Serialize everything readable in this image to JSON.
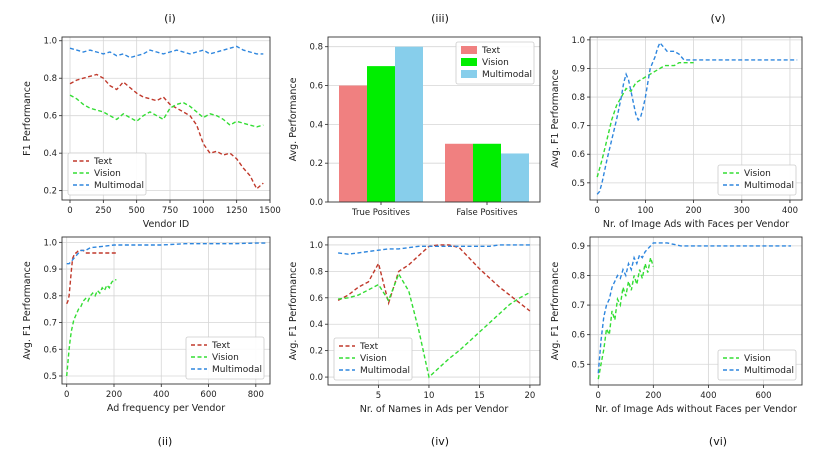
{
  "chart_data": [
    {
      "id": "i",
      "panel_label": "(i)",
      "type": "line",
      "xlabel": "Vendor ID",
      "ylabel": "F1 Performance",
      "xlim": [
        -60,
        1500
      ],
      "ylim": [
        0.15,
        1.02
      ],
      "xticks": [
        0,
        250,
        500,
        750,
        1000,
        1250,
        1500
      ],
      "yticks": [
        0.2,
        0.4,
        0.6,
        0.8,
        1.0
      ],
      "ytick_labels": [
        "0.2",
        "0.4",
        "0.6",
        "0.8",
        "1.0"
      ],
      "legend_position": "bottom-left",
      "series": [
        {
          "name": "Text",
          "color": "#c0392b",
          "x": [
            0,
            50,
            100,
            150,
            200,
            250,
            300,
            350,
            400,
            450,
            500,
            550,
            600,
            650,
            700,
            750,
            800,
            850,
            900,
            950,
            1000,
            1050,
            1100,
            1150,
            1200,
            1250,
            1300,
            1350,
            1400,
            1450
          ],
          "y": [
            0.77,
            0.79,
            0.8,
            0.81,
            0.82,
            0.8,
            0.76,
            0.74,
            0.78,
            0.75,
            0.72,
            0.7,
            0.69,
            0.68,
            0.7,
            0.66,
            0.64,
            0.62,
            0.6,
            0.55,
            0.45,
            0.4,
            0.41,
            0.39,
            0.4,
            0.37,
            0.32,
            0.28,
            0.21,
            0.24
          ]
        },
        {
          "name": "Vision",
          "color": "#33dd33",
          "x": [
            0,
            50,
            100,
            150,
            200,
            250,
            300,
            350,
            400,
            450,
            500,
            550,
            600,
            650,
            700,
            750,
            800,
            850,
            900,
            950,
            1000,
            1050,
            1100,
            1150,
            1200,
            1250,
            1300,
            1350,
            1400,
            1450
          ],
          "y": [
            0.71,
            0.69,
            0.66,
            0.64,
            0.63,
            0.62,
            0.6,
            0.58,
            0.61,
            0.59,
            0.57,
            0.6,
            0.62,
            0.6,
            0.58,
            0.64,
            0.66,
            0.67,
            0.65,
            0.62,
            0.59,
            0.61,
            0.6,
            0.58,
            0.55,
            0.57,
            0.56,
            0.55,
            0.54,
            0.55
          ]
        },
        {
          "name": "Multimodal",
          "color": "#2e86de",
          "x": [
            0,
            50,
            100,
            150,
            200,
            250,
            300,
            350,
            400,
            450,
            500,
            550,
            600,
            650,
            700,
            750,
            800,
            850,
            900,
            950,
            1000,
            1050,
            1100,
            1150,
            1200,
            1250,
            1300,
            1350,
            1400,
            1450
          ],
          "y": [
            0.96,
            0.95,
            0.94,
            0.95,
            0.94,
            0.93,
            0.94,
            0.92,
            0.93,
            0.91,
            0.92,
            0.93,
            0.95,
            0.94,
            0.93,
            0.94,
            0.95,
            0.94,
            0.93,
            0.94,
            0.95,
            0.93,
            0.94,
            0.95,
            0.96,
            0.97,
            0.95,
            0.94,
            0.93,
            0.93
          ]
        }
      ]
    },
    {
      "id": "iii",
      "panel_label": "(iii)",
      "type": "bar",
      "xlabel": "",
      "ylabel": "Avg. Performance",
      "ylim": [
        0,
        0.85
      ],
      "yticks": [
        0.0,
        0.2,
        0.4,
        0.6,
        0.8
      ],
      "ytick_labels": [
        "0.0",
        "0.2",
        "0.4",
        "0.6",
        "0.8"
      ],
      "categories": [
        "True Positives",
        "False Positives"
      ],
      "legend_position": "top-right",
      "series": [
        {
          "name": "Text",
          "color": "#f08080",
          "values": [
            0.6,
            0.3
          ]
        },
        {
          "name": "Vision",
          "color": "#00ee00",
          "values": [
            0.7,
            0.3
          ]
        },
        {
          "name": "Multimodal",
          "color": "#87ceeb",
          "values": [
            0.8,
            0.25
          ]
        }
      ]
    },
    {
      "id": "v",
      "panel_label": "(v)",
      "type": "line",
      "xlabel": "Nr. of Image Ads with Faces per Vendor",
      "ylabel": "Avg. F1 Performance",
      "xlim": [
        -15,
        425
      ],
      "ylim": [
        0.44,
        1.01
      ],
      "xticks": [
        0,
        100,
        200,
        300,
        400
      ],
      "yticks": [
        0.5,
        0.6,
        0.7,
        0.8,
        0.9,
        1.0
      ],
      "ytick_labels": [
        "0.5",
        "0.6",
        "0.7",
        "0.8",
        "0.9",
        "1.0"
      ],
      "legend_position": "bottom-right",
      "series": [
        {
          "name": "Vision",
          "color": "#33dd33",
          "x": [
            0,
            10,
            20,
            30,
            40,
            50,
            60,
            70,
            80,
            90,
            100,
            110,
            120,
            130,
            140,
            150,
            160,
            170,
            180,
            190,
            200
          ],
          "y": [
            0.52,
            0.58,
            0.65,
            0.72,
            0.77,
            0.8,
            0.83,
            0.82,
            0.85,
            0.86,
            0.87,
            0.88,
            0.89,
            0.9,
            0.91,
            0.91,
            0.91,
            0.92,
            0.92,
            0.92,
            0.92
          ]
        },
        {
          "name": "Multimodal",
          "color": "#2e86de",
          "x": [
            0,
            5,
            10,
            20,
            30,
            40,
            50,
            55,
            60,
            65,
            70,
            75,
            80,
            85,
            90,
            95,
            100,
            105,
            110,
            115,
            120,
            125,
            130,
            135,
            140,
            145,
            150,
            160,
            170,
            180,
            190,
            200,
            250,
            300,
            350,
            400,
            415
          ],
          "y": [
            0.46,
            0.47,
            0.5,
            0.58,
            0.65,
            0.72,
            0.8,
            0.85,
            0.88,
            0.86,
            0.82,
            0.78,
            0.74,
            0.72,
            0.73,
            0.76,
            0.8,
            0.85,
            0.9,
            0.92,
            0.94,
            0.97,
            0.99,
            0.98,
            0.97,
            0.96,
            0.96,
            0.96,
            0.95,
            0.93,
            0.93,
            0.93,
            0.93,
            0.93,
            0.93,
            0.93,
            0.93
          ]
        }
      ]
    },
    {
      "id": "ii",
      "panel_label": "(ii)",
      "type": "line",
      "xlabel": "Ad frequency per Vendor",
      "ylabel": "Avg. F1 Performance",
      "xlim": [
        -20,
        860
      ],
      "ylim": [
        0.47,
        1.02
      ],
      "xticks": [
        0,
        200,
        400,
        600,
        800
      ],
      "yticks": [
        0.5,
        0.6,
        0.7,
        0.8,
        0.9,
        1.0
      ],
      "ytick_labels": [
        "0.5",
        "0.6",
        "0.7",
        "0.8",
        "0.9",
        "1.0"
      ],
      "legend_position": "bottom-right",
      "series": [
        {
          "name": "Text",
          "color": "#c0392b",
          "x": [
            0,
            5,
            10,
            15,
            20,
            25,
            30,
            35,
            40,
            50,
            60,
            70,
            80,
            100,
            120,
            150,
            180,
            210
          ],
          "y": [
            0.77,
            0.78,
            0.8,
            0.85,
            0.9,
            0.94,
            0.95,
            0.96,
            0.96,
            0.97,
            0.97,
            0.97,
            0.96,
            0.96,
            0.96,
            0.96,
            0.96,
            0.96
          ]
        },
        {
          "name": "Vision",
          "color": "#33dd33",
          "x": [
            0,
            5,
            10,
            15,
            20,
            30,
            40,
            50,
            60,
            70,
            80,
            90,
            100,
            110,
            120,
            130,
            140,
            150,
            160,
            170,
            180,
            190,
            200,
            210
          ],
          "y": [
            0.5,
            0.55,
            0.6,
            0.64,
            0.67,
            0.71,
            0.73,
            0.75,
            0.76,
            0.78,
            0.79,
            0.78,
            0.8,
            0.81,
            0.8,
            0.82,
            0.81,
            0.83,
            0.82,
            0.84,
            0.83,
            0.85,
            0.86,
            0.86
          ]
        },
        {
          "name": "Multimodal",
          "color": "#2e86de",
          "x": [
            0,
            10,
            20,
            30,
            40,
            50,
            60,
            80,
            100,
            150,
            200,
            300,
            400,
            500,
            600,
            700,
            800,
            850
          ],
          "y": [
            0.92,
            0.92,
            0.93,
            0.94,
            0.95,
            0.96,
            0.97,
            0.97,
            0.98,
            0.985,
            0.99,
            0.99,
            0.99,
            0.995,
            0.995,
            0.995,
            0.997,
            0.997
          ]
        }
      ]
    },
    {
      "id": "iv",
      "panel_label": "(iv)",
      "type": "line",
      "xlabel": "Nr. of Names in Ads per Vendor",
      "ylabel": "Avg. F1 Performance",
      "xlim": [
        0,
        21
      ],
      "ylim": [
        -0.06,
        1.06
      ],
      "xticks": [
        5,
        10,
        15,
        20
      ],
      "yticks": [
        0.0,
        0.2,
        0.4,
        0.6,
        0.8,
        1.0
      ],
      "ytick_labels": [
        "0.0",
        "0.2",
        "0.4",
        "0.6",
        "0.8",
        "1.0"
      ],
      "legend_position": "bottom-left",
      "series": [
        {
          "name": "Text",
          "color": "#c0392b",
          "x": [
            1,
            2,
            3,
            4,
            5,
            6,
            7,
            8,
            9,
            10,
            11,
            12,
            13,
            14,
            15,
            16,
            17,
            18,
            19,
            20
          ],
          "y": [
            0.58,
            0.62,
            0.68,
            0.72,
            0.86,
            0.56,
            0.8,
            0.85,
            0.92,
            0.99,
            1.0,
            1.0,
            0.98,
            0.9,
            0.82,
            0.75,
            0.68,
            0.62,
            0.56,
            0.5
          ]
        },
        {
          "name": "Vision",
          "color": "#33dd33",
          "x": [
            1,
            2,
            3,
            4,
            5,
            6,
            7,
            8,
            9,
            10,
            11,
            12,
            13,
            14,
            15,
            16,
            17,
            18,
            19,
            20
          ],
          "y": [
            0.59,
            0.6,
            0.62,
            0.66,
            0.7,
            0.58,
            0.78,
            0.65,
            0.35,
            0.0,
            0.07,
            0.14,
            0.2,
            0.27,
            0.34,
            0.41,
            0.48,
            0.55,
            0.6,
            0.64
          ]
        },
        {
          "name": "Multimodal",
          "color": "#2e86de",
          "x": [
            1,
            2,
            3,
            4,
            5,
            6,
            7,
            8,
            9,
            10,
            11,
            12,
            13,
            14,
            15,
            16,
            17,
            18,
            19,
            20
          ],
          "y": [
            0.94,
            0.93,
            0.94,
            0.95,
            0.96,
            0.97,
            0.97,
            0.98,
            0.99,
            0.99,
            0.99,
            0.99,
            0.99,
            0.99,
            0.99,
            0.99,
            1.0,
            1.0,
            1.0,
            1.0
          ]
        }
      ]
    },
    {
      "id": "vi",
      "panel_label": "(vi)",
      "type": "line",
      "xlabel": "Nr. of Image Ads without Faces per Vendor",
      "ylabel": "Avg. F1 Performance",
      "xlim": [
        -30,
        740
      ],
      "ylim": [
        0.43,
        0.93
      ],
      "xticks": [
        0,
        200,
        400,
        600
      ],
      "yticks": [
        0.5,
        0.6,
        0.7,
        0.8,
        0.9
      ],
      "ytick_labels": [
        "0.5",
        "0.6",
        "0.7",
        "0.8",
        "0.9"
      ],
      "legend_position": "bottom-right",
      "series": [
        {
          "name": "Vision",
          "color": "#33dd33",
          "x": [
            0,
            10,
            20,
            30,
            40,
            50,
            60,
            70,
            80,
            90,
            100,
            110,
            120,
            130,
            140,
            150,
            160,
            170,
            180,
            190,
            200
          ],
          "y": [
            0.45,
            0.5,
            0.55,
            0.62,
            0.6,
            0.68,
            0.65,
            0.72,
            0.7,
            0.76,
            0.73,
            0.78,
            0.75,
            0.8,
            0.77,
            0.82,
            0.79,
            0.84,
            0.81,
            0.86,
            0.83
          ]
        },
        {
          "name": "Multimodal",
          "color": "#2e86de",
          "x": [
            0,
            10,
            20,
            30,
            40,
            50,
            60,
            70,
            80,
            90,
            100,
            110,
            120,
            130,
            140,
            150,
            160,
            170,
            180,
            190,
            200,
            250,
            300,
            400,
            500,
            600,
            700
          ],
          "y": [
            0.47,
            0.58,
            0.66,
            0.7,
            0.72,
            0.76,
            0.78,
            0.8,
            0.79,
            0.82,
            0.8,
            0.84,
            0.82,
            0.86,
            0.84,
            0.87,
            0.86,
            0.88,
            0.89,
            0.9,
            0.91,
            0.91,
            0.9,
            0.9,
            0.9,
            0.9,
            0.9
          ]
        }
      ]
    }
  ]
}
